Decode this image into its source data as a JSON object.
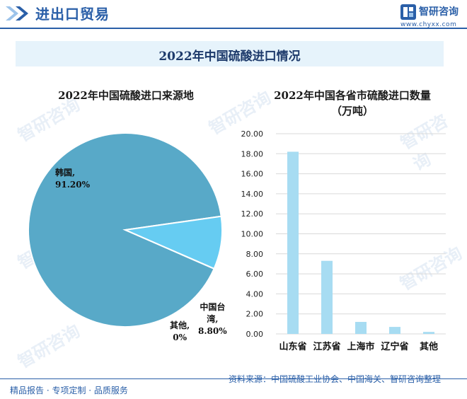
{
  "header": {
    "title": "进出口贸易",
    "logo_name": "智研咨询",
    "logo_url": "www.chyxx.com"
  },
  "banner": {
    "title": "2022年中国硫酸进口情况"
  },
  "chart_data": [
    {
      "type": "pie",
      "title": "2022年中国硫酸进口来源地",
      "slices": [
        {
          "name": "韩国",
          "value": 91.2,
          "display": "91.20%",
          "color": "#58a9c8"
        },
        {
          "name": "中国台湾",
          "value": 8.8,
          "display": "8.80%",
          "color": "#66ccf2"
        },
        {
          "name": "其他",
          "value": 0.0,
          "display": "0%",
          "color": "#9dd8f0"
        }
      ]
    },
    {
      "type": "bar",
      "title": "2022年中国各省市硫酸进口数量",
      "subtitle": "（万吨）",
      "categories": [
        "山东省",
        "江苏省",
        "上海市",
        "辽宁省",
        "其他"
      ],
      "values": [
        18.2,
        7.3,
        1.2,
        0.7,
        0.2
      ],
      "ylim": [
        0,
        20
      ],
      "ytick_labels": [
        "0.00",
        "2.00",
        "4.00",
        "6.00",
        "8.00",
        "10.00",
        "12.00",
        "14.00",
        "16.00",
        "18.00",
        "20.00"
      ],
      "grid": true,
      "bar_color": "#a7dcf2"
    }
  ],
  "footer": {
    "left": "精品报告 · 专项定制 · 品质服务",
    "source": "资料来源：中国硫酸工业协会、中国海关、智研咨询整理"
  },
  "watermark": "智研咨询"
}
